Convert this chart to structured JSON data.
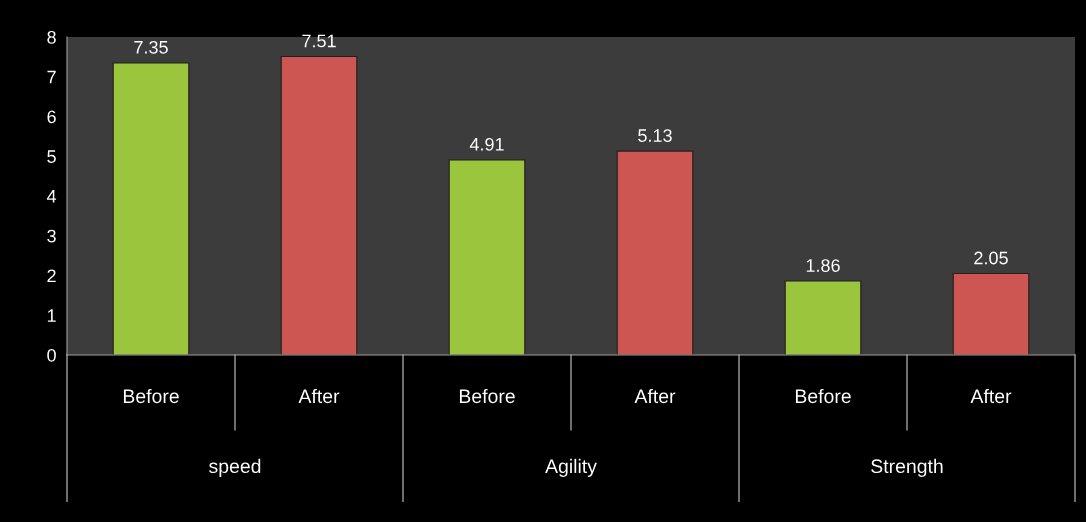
{
  "chart_data": {
    "type": "bar",
    "categories": [
      "Before",
      "After",
      "Before",
      "After",
      "Before",
      "After"
    ],
    "values": [
      7.35,
      7.51,
      4.91,
      5.13,
      1.86,
      2.05
    ],
    "colors": [
      "#9bc53d",
      "#cd5552",
      "#9bc53d",
      "#cd5552",
      "#9bc53d",
      "#cd5552"
    ],
    "data_labels": true,
    "ylim": [
      0,
      8
    ],
    "yticks": [
      0,
      1,
      2,
      3,
      4,
      5,
      6,
      7,
      8
    ],
    "grid": false,
    "legend": false,
    "annotations": [
      "speed",
      "Agility",
      "Strength"
    ]
  }
}
